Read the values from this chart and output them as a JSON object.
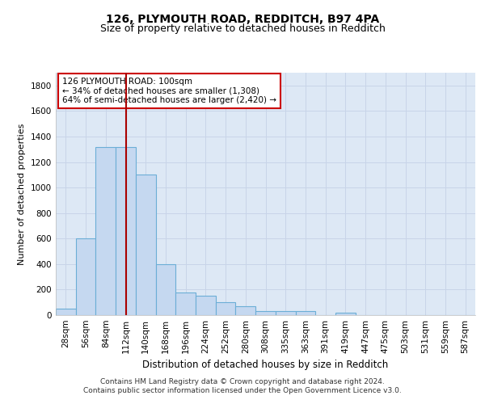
{
  "title": "126, PLYMOUTH ROAD, REDDITCH, B97 4PA",
  "subtitle": "Size of property relative to detached houses in Redditch",
  "xlabel": "Distribution of detached houses by size in Redditch",
  "ylabel": "Number of detached properties",
  "bar_categories": [
    "28sqm",
    "56sqm",
    "84sqm",
    "112sqm",
    "140sqm",
    "168sqm",
    "196sqm",
    "224sqm",
    "252sqm",
    "280sqm",
    "308sqm",
    "335sqm",
    "363sqm",
    "391sqm",
    "419sqm",
    "447sqm",
    "475sqm",
    "503sqm",
    "531sqm",
    "559sqm",
    "587sqm"
  ],
  "bar_values": [
    50,
    600,
    1320,
    1320,
    1100,
    400,
    175,
    150,
    100,
    70,
    30,
    30,
    30,
    0,
    20,
    0,
    0,
    0,
    0,
    0,
    0
  ],
  "bar_color": "#c5d8f0",
  "bar_edge_color": "#6baed6",
  "bar_linewidth": 0.8,
  "ylim": [
    0,
    1900
  ],
  "yticks": [
    0,
    200,
    400,
    600,
    800,
    1000,
    1200,
    1400,
    1600,
    1800
  ],
  "vline_color": "#aa0000",
  "vline_linewidth": 1.5,
  "annotation_text": "126 PLYMOUTH ROAD: 100sqm\n← 34% of detached houses are smaller (1,308)\n64% of semi-detached houses are larger (2,420) →",
  "annotation_box_facecolor": "#ffffff",
  "annotation_box_edgecolor": "#cc0000",
  "grid_color": "#c8d4e8",
  "bg_color": "#dde8f5",
  "title_fontsize": 10,
  "subtitle_fontsize": 9,
  "xlabel_fontsize": 8.5,
  "ylabel_fontsize": 8,
  "tick_fontsize": 7.5,
  "annotation_fontsize": 7.5,
  "footer_fontsize": 6.5,
  "footer_text": "Contains HM Land Registry data © Crown copyright and database right 2024.\nContains public sector information licensed under the Open Government Licence v3.0."
}
